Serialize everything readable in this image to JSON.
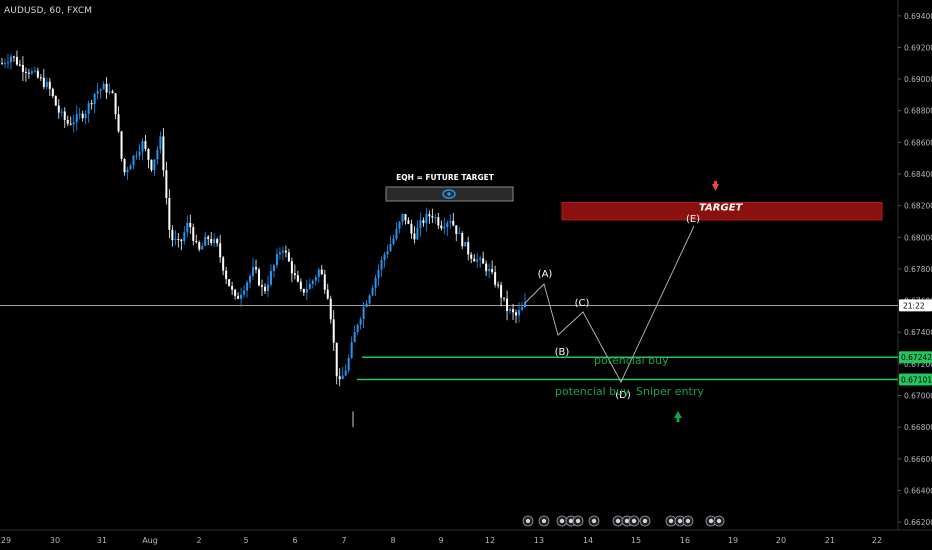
{
  "header": {
    "symbol_line": "AUDUSD, 60, FXCM"
  },
  "price_axis": {
    "ticks": [
      "0.69400",
      "0.69200",
      "0.69000",
      "0.68800",
      "0.68600",
      "0.68400",
      "0.68200",
      "0.68000",
      "0.67800",
      "0.67600",
      "0.67400",
      "0.67200",
      "0.67000",
      "0.66800",
      "0.66600",
      "0.66400",
      "0.66200"
    ],
    "current_price_tag": "21:22",
    "level_tags": [
      "0.67242",
      "0.67101"
    ],
    "range": [
      0.6615,
      0.695
    ]
  },
  "time_axis": {
    "labels": [
      "29",
      "30",
      "31",
      "Aug",
      "2",
      "5",
      "6",
      "7",
      "8",
      "9",
      "12",
      "13",
      "14",
      "15",
      "16",
      "19",
      "20",
      "21",
      "22"
    ]
  },
  "annotations": {
    "box_title": "EQH = FUTURE TARGET",
    "target_label": "TARGET",
    "wave_labels": [
      "(A)",
      "(B)",
      "(C)",
      "(D)",
      "(E)"
    ],
    "potential_buy_1": "potencial buy",
    "potential_buy_2": "potencial buy",
    "sniper_entry": "Sniper entry"
  },
  "chart_data": {
    "type": "candlestick",
    "symbol": "AUDUSD",
    "timeframe": "60",
    "exchange": "FXCM",
    "ylim": [
      0.6615,
      0.695
    ],
    "horizontal_levels": [
      {
        "label": "0.67242",
        "color": "#22c55e"
      },
      {
        "label": "0.67101",
        "color": "#22c55e"
      }
    ],
    "target_zone": {
      "from": 0.6811,
      "to": 0.6822,
      "label": "TARGET"
    },
    "projection_path": [
      {
        "label": "(A)",
        "price": 0.6775
      },
      {
        "label": "(B)",
        "price": 0.674
      },
      {
        "label": "(C)",
        "price": 0.6755
      },
      {
        "label": "(D)",
        "price": 0.6708
      },
      {
        "label": "(E)",
        "price": 0.6813
      }
    ],
    "price_path": [
      [
        0.691,
        0.6915,
        0.6908,
        0.6905,
        0.69,
        0.6895,
        0.688,
        0.6872,
        0.6875,
        0.688,
        0.6892,
        0.6895,
        0.6888,
        0.684,
        0.685,
        0.686,
        0.6845,
        0.6862,
        0.68,
        0.6795,
        0.681,
        0.679,
        0.68,
        0.6795,
        0.6775,
        0.676,
        0.677,
        0.678,
        0.6765,
        0.678,
        0.6795,
        0.678,
        0.6765,
        0.677,
        0.678,
        0.6762,
        0.6705,
        0.672,
        0.6745,
        0.676,
        0.6775,
        0.679,
        0.68,
        0.6815,
        0.68,
        0.681,
        0.6815,
        0.6808,
        0.6812,
        0.68,
        0.679,
        0.6785,
        0.678,
        0.677,
        0.6755,
        0.675,
        0.6757
      ]
    ]
  },
  "colors": {
    "background": "#000000",
    "up_candle": "#2196f3",
    "down_candle": "#ffffff",
    "level_green": "#22c55e",
    "target_red": "#8b1111",
    "axis_text": "#b2b5be"
  },
  "event_icons": [
    "flag-icon",
    "calendar-icon",
    "calendar-icon",
    "calendar-icon",
    "calendar-icon",
    "calendar-icon",
    "calendar-icon"
  ]
}
